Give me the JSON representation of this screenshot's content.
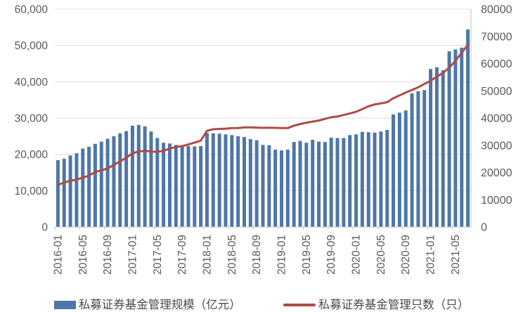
{
  "colors": {
    "bar": "#4e76a8",
    "line": "#b04b44",
    "grid": "#dcdcdc",
    "axis_line": "#c0c0c0",
    "axis_text": "#595959"
  },
  "legend": {
    "items": [
      {
        "label": "私募证券基金管理规模（亿元）",
        "swatch": "bar"
      },
      {
        "label": "私募证券基金管理只数（只）",
        "swatch": "line"
      }
    ]
  },
  "chart_data": {
    "type": "bar+line",
    "title": "",
    "grid": true,
    "legend_position": "bottom",
    "x": [
      "2016-01",
      "2016-02",
      "2016-03",
      "2016-04",
      "2016-05",
      "2016-06",
      "2016-07",
      "2016-08",
      "2016-09",
      "2016-10",
      "2016-11",
      "2016-12",
      "2017-01",
      "2017-02",
      "2017-03",
      "2017-04",
      "2017-05",
      "2017-06",
      "2017-07",
      "2017-08",
      "2017-09",
      "2017-10",
      "2017-11",
      "2017-12",
      "2018-01",
      "2018-02",
      "2018-03",
      "2018-04",
      "2018-05",
      "2018-06",
      "2018-07",
      "2018-08",
      "2018-09",
      "2018-10",
      "2018-11",
      "2018-12",
      "2019-01",
      "2019-02",
      "2019-03",
      "2019-04",
      "2019-05",
      "2019-06",
      "2019-07",
      "2019-08",
      "2019-09",
      "2019-10",
      "2019-11",
      "2019-12",
      "2020-01",
      "2020-02",
      "2020-03",
      "2020-04",
      "2020-05",
      "2020-06",
      "2020-07",
      "2020-08",
      "2020-09",
      "2020-10",
      "2020-11",
      "2020-12",
      "2021-01",
      "2021-02",
      "2021-03",
      "2021-04",
      "2021-05",
      "2021-06",
      "2021-07"
    ],
    "x_tick_labels": [
      "2016-01",
      "2016-05",
      "2016-09",
      "2017-01",
      "2017-05",
      "2017-09",
      "2018-01",
      "2018-05",
      "2018-09",
      "2019-01",
      "2019-05",
      "2019-09",
      "2020-01",
      "2020-05",
      "2020-09",
      "2021-01",
      "2021-05"
    ],
    "x_tick_every": 4,
    "series": [
      {
        "name": "私募证券基金管理规模（亿元）",
        "kind": "bar",
        "axis": "left",
        "values": [
          18400,
          18800,
          19700,
          20300,
          21600,
          22100,
          22900,
          23500,
          24300,
          25000,
          25800,
          26400,
          27900,
          28100,
          27700,
          26300,
          24500,
          23200,
          23000,
          22600,
          22400,
          22300,
          22200,
          22300,
          25900,
          25800,
          25700,
          25500,
          25300,
          25000,
          24800,
          24200,
          23900,
          22600,
          22500,
          21300,
          21100,
          21300,
          23400,
          23700,
          23200,
          24000,
          23500,
          23400,
          24600,
          24500,
          24500,
          25300,
          25500,
          26200,
          26100,
          26000,
          26300,
          26700,
          31000,
          31500,
          32100,
          36800,
          37400,
          37700,
          43500,
          44000,
          43200,
          48400,
          48900,
          49400,
          54400
        ]
      },
      {
        "name": "私募证券基金管理只数（只）",
        "kind": "line",
        "axis": "right",
        "values": [
          15500,
          16300,
          17000,
          17400,
          18100,
          18900,
          20200,
          20800,
          21500,
          22800,
          24100,
          25400,
          27100,
          27700,
          28000,
          27700,
          27600,
          28000,
          28800,
          29400,
          29700,
          30300,
          31000,
          31700,
          35300,
          35900,
          36000,
          36100,
          36300,
          36300,
          36600,
          36600,
          36500,
          36400,
          36400,
          36400,
          36300,
          36300,
          37200,
          37800,
          38300,
          38700,
          39100,
          39700,
          40300,
          40600,
          41100,
          41700,
          42300,
          43300,
          44300,
          45000,
          45400,
          45800,
          47300,
          48300,
          49400,
          50300,
          51300,
          52500,
          53700,
          55200,
          56600,
          58500,
          61000,
          64000,
          66900
        ]
      }
    ],
    "left_axis": {
      "min": 0,
      "max": 60000,
      "step": 10000,
      "tick_labels": [
        "0",
        "10,000",
        "20,000",
        "30,000",
        "40,000",
        "50,000",
        "60,000"
      ]
    },
    "right_axis": {
      "min": 0,
      "max": 80000,
      "step": 10000,
      "tick_labels": [
        "0",
        "10000",
        "20000",
        "30000",
        "40000",
        "50000",
        "60000",
        "70000",
        "80000"
      ]
    }
  }
}
